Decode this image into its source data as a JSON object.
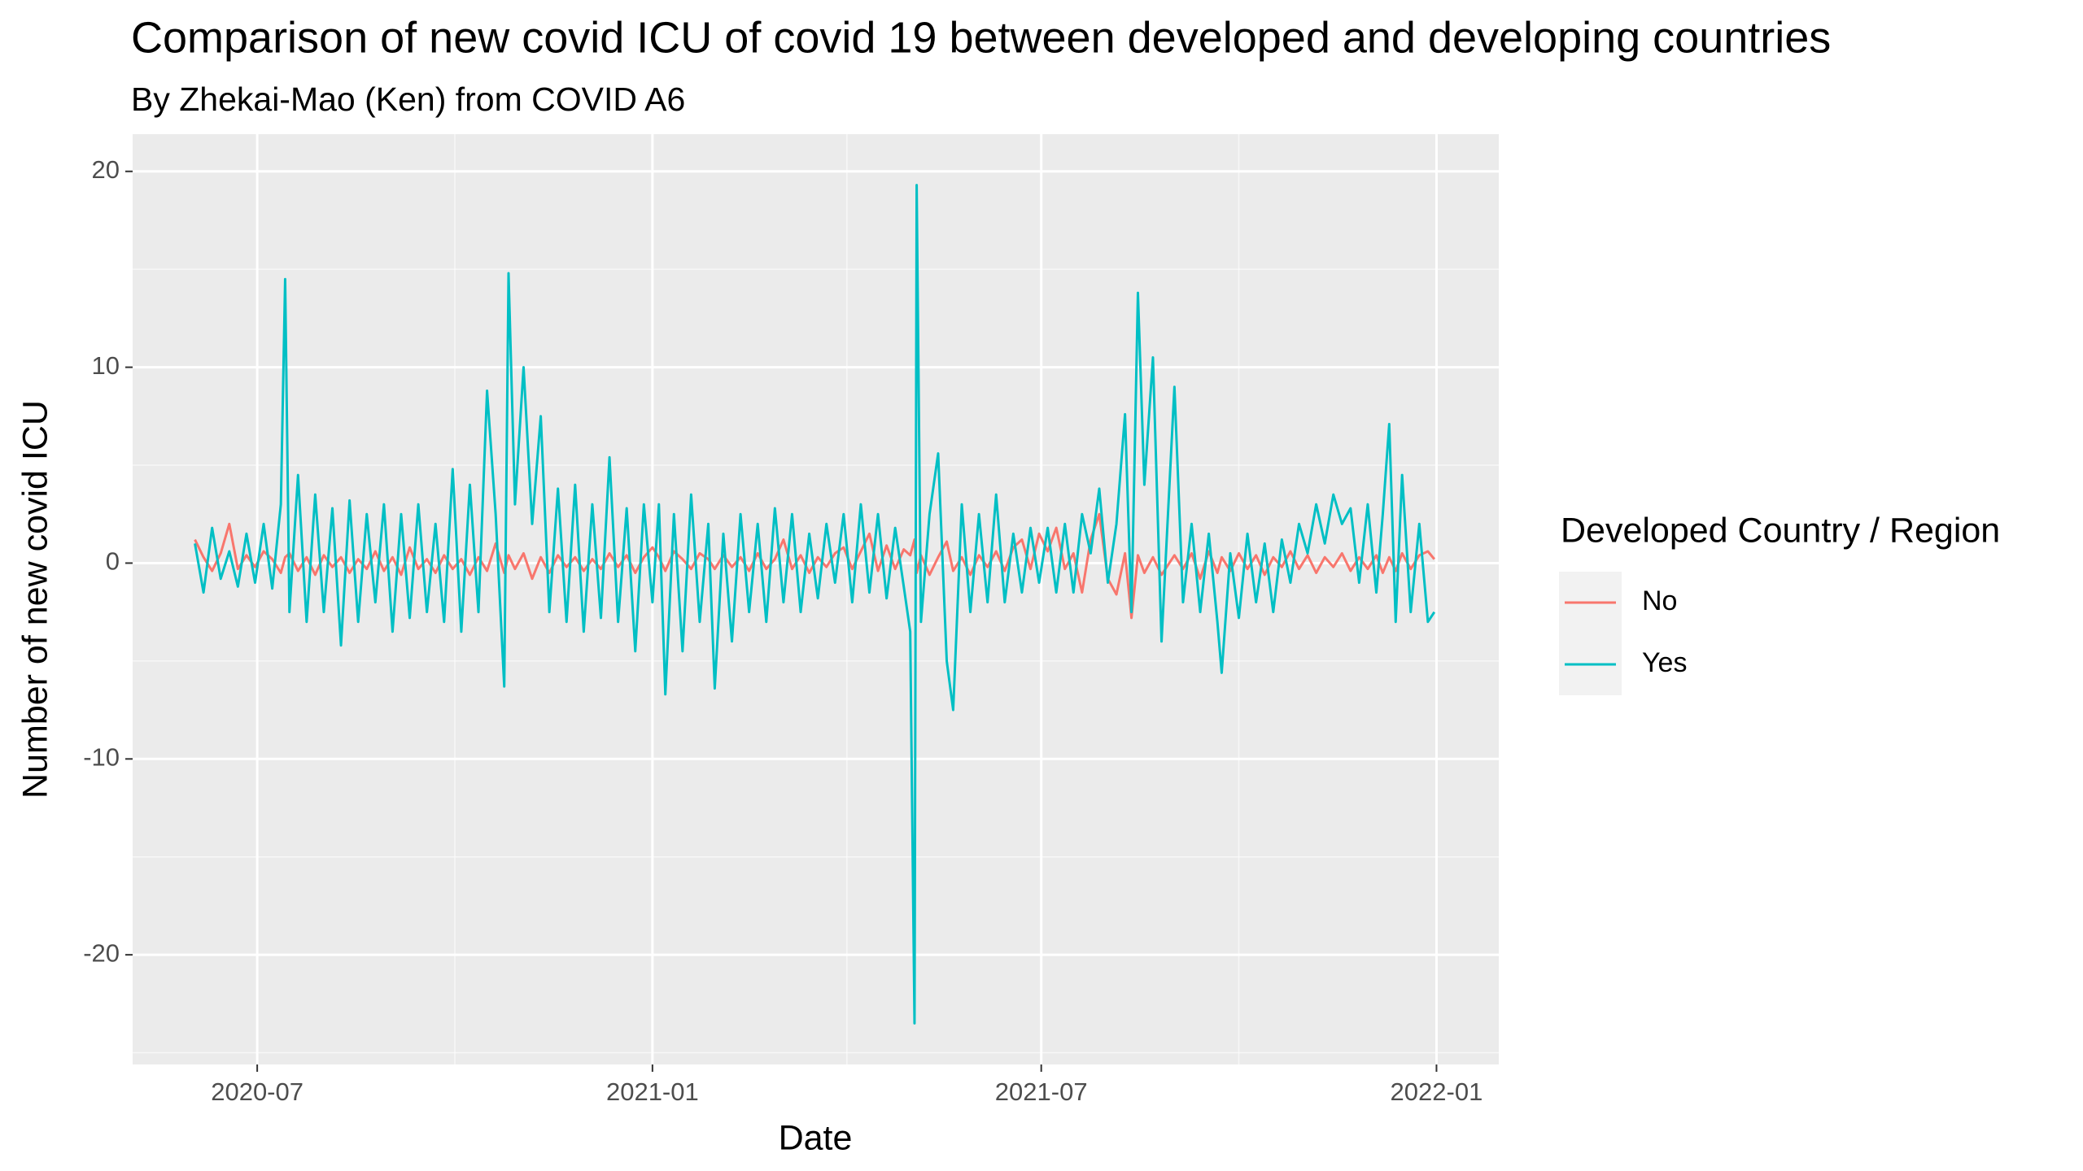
{
  "chart_data": {
    "type": "line",
    "title": "Comparison of new covid ICU of covid 19 between developed and developing countries",
    "subtitle": "By Zhekai-Mao (Ken) from COVID A6",
    "x_label": "Date",
    "y_label": "Number of new covid ICU",
    "legend_title": "Developed Country / Region",
    "legend": "right",
    "grid": true,
    "x": [
      "2020-06-02",
      "2020-06-06",
      "2020-06-10",
      "2020-06-14",
      "2020-06-18",
      "2020-06-22",
      "2020-06-26",
      "2020-06-30",
      "2020-07-04",
      "2020-07-08",
      "2020-07-12",
      "2020-07-14",
      "2020-07-16",
      "2020-07-20",
      "2020-07-24",
      "2020-07-28",
      "2020-08-01",
      "2020-08-05",
      "2020-08-09",
      "2020-08-13",
      "2020-08-17",
      "2020-08-21",
      "2020-08-25",
      "2020-08-29",
      "2020-09-02",
      "2020-09-06",
      "2020-09-10",
      "2020-09-14",
      "2020-09-18",
      "2020-09-22",
      "2020-09-26",
      "2020-09-30",
      "2020-10-04",
      "2020-10-08",
      "2020-10-12",
      "2020-10-16",
      "2020-10-20",
      "2020-10-24",
      "2020-10-26",
      "2020-10-29",
      "2020-11-02",
      "2020-11-06",
      "2020-11-10",
      "2020-11-14",
      "2020-11-18",
      "2020-11-22",
      "2020-11-26",
      "2020-11-30",
      "2020-12-04",
      "2020-12-08",
      "2020-12-12",
      "2020-12-16",
      "2020-12-20",
      "2020-12-24",
      "2020-12-28",
      "2021-01-01",
      "2021-01-04",
      "2021-01-07",
      "2021-01-11",
      "2021-01-15",
      "2021-01-19",
      "2021-01-23",
      "2021-01-27",
      "2021-01-30",
      "2021-02-03",
      "2021-02-07",
      "2021-02-11",
      "2021-02-15",
      "2021-02-19",
      "2021-02-23",
      "2021-02-27",
      "2021-03-03",
      "2021-03-07",
      "2021-03-11",
      "2021-03-15",
      "2021-03-19",
      "2021-03-23",
      "2021-03-27",
      "2021-03-31",
      "2021-04-04",
      "2021-04-08",
      "2021-04-12",
      "2021-04-16",
      "2021-04-20",
      "2021-04-24",
      "2021-04-28",
      "2021-05-01",
      "2021-05-03",
      "2021-05-04",
      "2021-05-06",
      "2021-05-10",
      "2021-05-14",
      "2021-05-18",
      "2021-05-21",
      "2021-05-25",
      "2021-05-29",
      "2021-06-02",
      "2021-06-06",
      "2021-06-10",
      "2021-06-14",
      "2021-06-18",
      "2021-06-22",
      "2021-06-26",
      "2021-06-30",
      "2021-07-04",
      "2021-07-08",
      "2021-07-12",
      "2021-07-16",
      "2021-07-20",
      "2021-07-24",
      "2021-07-28",
      "2021-08-01",
      "2021-08-05",
      "2021-08-09",
      "2021-08-12",
      "2021-08-15",
      "2021-08-18",
      "2021-08-22",
      "2021-08-26",
      "2021-09-01",
      "2021-09-05",
      "2021-09-09",
      "2021-09-13",
      "2021-09-17",
      "2021-09-21",
      "2021-09-23",
      "2021-09-27",
      "2021-10-01",
      "2021-10-05",
      "2021-10-09",
      "2021-10-13",
      "2021-10-17",
      "2021-10-21",
      "2021-10-25",
      "2021-10-29",
      "2021-11-02",
      "2021-11-06",
      "2021-11-10",
      "2021-11-14",
      "2021-11-18",
      "2021-11-22",
      "2021-11-26",
      "2021-11-30",
      "2021-12-04",
      "2021-12-07",
      "2021-12-10",
      "2021-12-13",
      "2021-12-16",
      "2021-12-20",
      "2021-12-24",
      "2021-12-28",
      "2021-12-31"
    ],
    "series": [
      {
        "name": "No",
        "color": "#F8766D",
        "values": [
          1.2,
          0.3,
          -0.4,
          0.5,
          2.0,
          -0.3,
          0.4,
          -0.2,
          0.6,
          0.2,
          -0.5,
          0.3,
          0.5,
          -0.4,
          0.3,
          -0.6,
          0.4,
          -0.2,
          0.3,
          -0.5,
          0.2,
          -0.3,
          0.6,
          -0.4,
          0.3,
          -0.6,
          0.8,
          -0.3,
          0.2,
          -0.5,
          0.4,
          -0.3,
          0.2,
          -0.6,
          0.3,
          -0.4,
          1.0,
          -0.5,
          0.4,
          -0.3,
          0.5,
          -0.8,
          0.3,
          -0.5,
          0.4,
          -0.2,
          0.3,
          -0.4,
          0.2,
          -0.3,
          0.5,
          -0.2,
          0.4,
          -0.5,
          0.3,
          0.8,
          0.3,
          -0.4,
          0.6,
          0.2,
          -0.3,
          0.5,
          0.2,
          -0.3,
          0.4,
          -0.2,
          0.3,
          -0.4,
          0.5,
          -0.3,
          0.2,
          1.2,
          -0.3,
          0.4,
          -0.5,
          0.3,
          -0.2,
          0.5,
          0.8,
          -0.3,
          0.6,
          1.5,
          -0.4,
          0.9,
          -0.3,
          0.7,
          0.4,
          1.2,
          -0.5,
          0.4,
          -0.6,
          0.3,
          1.1,
          -0.4,
          0.3,
          -0.6,
          0.4,
          -0.2,
          0.6,
          -0.4,
          0.8,
          1.2,
          -0.3,
          1.5,
          0.6,
          1.8,
          -0.3,
          0.5,
          -1.5,
          1.2,
          2.5,
          -0.8,
          -1.6,
          0.5,
          -2.8,
          0.4,
          -0.5,
          0.3,
          -0.6,
          0.4,
          -0.3,
          0.5,
          -0.8,
          0.6,
          -0.5,
          0.3,
          -0.4,
          0.5,
          -0.3,
          0.4,
          -0.6,
          0.3,
          -0.2,
          0.6,
          -0.3,
          0.4,
          -0.5,
          0.3,
          -0.2,
          0.5,
          -0.4,
          0.3,
          -0.3,
          0.4,
          -0.5,
          0.3,
          -0.4,
          0.5,
          -0.3,
          0.4,
          0.6,
          0.2
        ]
      },
      {
        "name": "Yes",
        "color": "#00BFC4",
        "values": [
          1.0,
          -1.5,
          1.8,
          -0.8,
          0.6,
          -1.2,
          1.5,
          -1.0,
          2.0,
          -1.3,
          3.0,
          14.5,
          -2.5,
          4.5,
          -3.0,
          3.5,
          -2.5,
          2.8,
          -4.2,
          3.2,
          -3.0,
          2.5,
          -2.0,
          3.0,
          -3.5,
          2.5,
          -2.8,
          3.0,
          -2.5,
          2.0,
          -3.0,
          4.8,
          -3.5,
          4.0,
          -2.5,
          8.8,
          2.5,
          -6.3,
          14.8,
          3.0,
          10.0,
          2.0,
          7.5,
          -2.5,
          3.8,
          -3.0,
          4.0,
          -3.5,
          3.0,
          -2.8,
          5.4,
          -3.0,
          2.8,
          -4.5,
          3.0,
          -2.0,
          3.0,
          -6.7,
          2.5,
          -4.5,
          3.5,
          -3.0,
          2.0,
          -6.4,
          1.5,
          -4.0,
          2.5,
          -2.5,
          2.0,
          -3.0,
          2.8,
          -2.0,
          2.5,
          -2.5,
          1.5,
          -1.8,
          2.0,
          -1.0,
          2.5,
          -2.0,
          3.0,
          -1.5,
          2.5,
          -1.8,
          1.8,
          -1.2,
          -3.5,
          -23.5,
          19.3,
          -3.0,
          2.5,
          5.6,
          -5.0,
          -7.5,
          3.0,
          -2.5,
          2.5,
          -2.0,
          3.5,
          -2.0,
          1.5,
          -1.5,
          1.8,
          -1.0,
          1.8,
          -1.5,
          2.0,
          -1.5,
          2.5,
          0.5,
          3.8,
          -1.0,
          2.0,
          7.6,
          -2.5,
          13.8,
          4.0,
          10.5,
          -4.0,
          9.0,
          -2.0,
          2.0,
          -2.5,
          1.5,
          -3.0,
          -5.6,
          0.5,
          -2.8,
          1.5,
          -2.0,
          1.0,
          -2.5,
          1.2,
          -1.0,
          2.0,
          0.5,
          3.0,
          1.0,
          3.5,
          2.0,
          2.8,
          -1.0,
          3.0,
          -1.5,
          2.5,
          7.1,
          -3.0,
          4.5,
          -2.5,
          2.0,
          -3.0,
          -2.5
        ]
      }
    ],
    "xlim": [
      "2020-05-04",
      "2022-01-30"
    ],
    "xticks": [
      {
        "value": "2020-07-01",
        "label": "2020-07"
      },
      {
        "value": "2021-01-01",
        "label": "2021-01"
      },
      {
        "value": "2021-07-01",
        "label": "2021-07"
      },
      {
        "value": "2022-01-01",
        "label": "2022-01"
      }
    ],
    "ylim": [
      -25.6,
      21.9
    ],
    "yticks": [
      -20,
      -10,
      0,
      10,
      20
    ]
  }
}
